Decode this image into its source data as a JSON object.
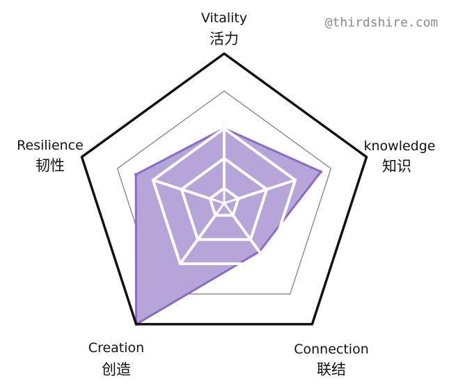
{
  "watermark": "@thirdshire.com",
  "chart_data": {
    "type": "radar",
    "axes": [
      {
        "label": "Vitality",
        "label_cn": "活力"
      },
      {
        "label": "knowledge",
        "label_cn": "知识"
      },
      {
        "label": "Connection",
        "label_cn": "联结"
      },
      {
        "label": "Creation",
        "label_cn": "创造"
      },
      {
        "label": "Resilience",
        "label_cn": "韧性"
      }
    ],
    "series": [
      {
        "values": [
          50,
          68,
          40,
          100,
          62
        ]
      }
    ],
    "range": [
      0,
      100
    ],
    "levels": 4,
    "colors": {
      "fill": "#b5a5d9",
      "stroke": "#8a6cc4",
      "outer": "#111111",
      "grid": "#888888",
      "inner_web": "#ffffff"
    }
  }
}
